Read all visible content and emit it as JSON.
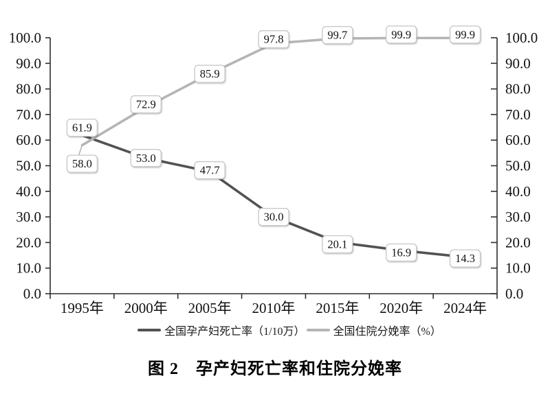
{
  "figure": {
    "caption": "图 2　孕产妇死亡率和住院分娩率"
  },
  "chart_data": {
    "type": "line",
    "categories": [
      "1995年",
      "2000年",
      "2005年",
      "2010年",
      "2015年",
      "2020年",
      "2024年"
    ],
    "series": [
      {
        "name": "全国孕产妇死亡率（1/10万）",
        "color": "#525252",
        "values": [
          61.9,
          53.0,
          47.7,
          30.0,
          20.1,
          16.9,
          14.3
        ],
        "label_dy": [
          -11,
          0,
          -2,
          0,
          3,
          3,
          2
        ],
        "leaders": [
          false,
          false,
          false,
          false,
          false,
          false,
          false
        ]
      },
      {
        "name": "全国住院分娩率（%）",
        "color": "#b5b5b5",
        "values": [
          58.0,
          72.9,
          85.9,
          97.8,
          99.7,
          99.9,
          99.9
        ],
        "label_dy": [
          27,
          -4,
          0,
          -6,
          -5,
          -5,
          -5
        ],
        "leaders": [
          true,
          false,
          false,
          false,
          false,
          false,
          false
        ]
      }
    ],
    "ylim": [
      0,
      100
    ],
    "tick_step": 10,
    "tick_decimals": 1,
    "dual_axis": true,
    "grid": false,
    "legend_position": "bottom",
    "label_box": {
      "fill": "#ffffff",
      "border": "#c6c6c6"
    },
    "axis_color": "#2d2d2d"
  }
}
